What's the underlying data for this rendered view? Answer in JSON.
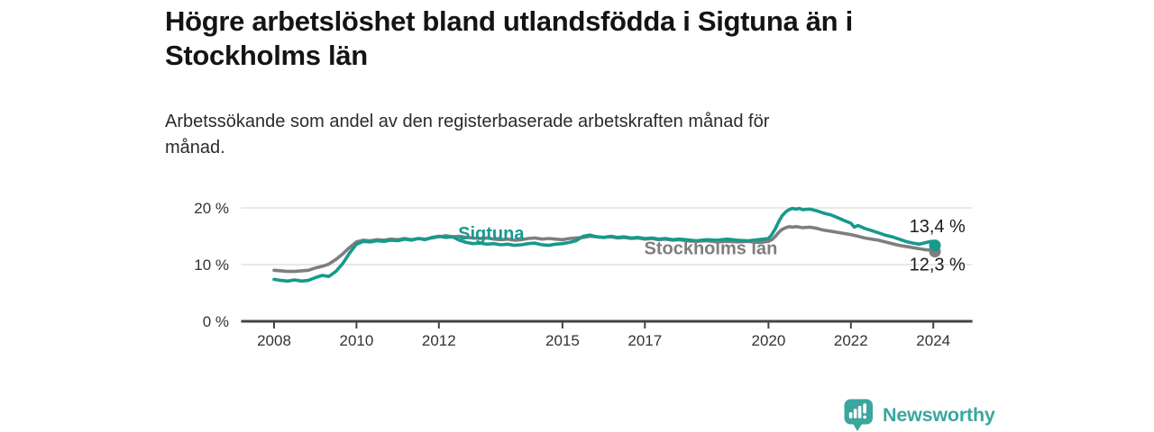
{
  "branding": {
    "logo_text": "Newsworthy",
    "logo_icon": "bar-chart-speech-bubble",
    "logo_color": "#3ba69e"
  },
  "chart_data": {
    "type": "line",
    "title": "Högre arbetslöshet bland utlandsfödda i Sigtuna än i Stockholms län",
    "subtitle": "Arbetssökande som andel av den registerbaserade arbetskraften månad för månad.",
    "xlabel": "",
    "ylabel": "",
    "x_unit": "year",
    "y_unit": "percent",
    "xlim": [
      2007.2,
      2024.95
    ],
    "ylim": [
      0,
      22
    ],
    "x_ticks": [
      2008,
      2010,
      2012,
      2015,
      2017,
      2020,
      2022,
      2024
    ],
    "y_ticks": [
      {
        "value": 20,
        "label": "20 %"
      },
      {
        "value": 10,
        "label": "10 %"
      },
      {
        "value": 0,
        "label": "0 %"
      }
    ],
    "grid_values": [
      20,
      10
    ],
    "grid_color": "#dcdcdc",
    "axis_color": "#454545",
    "tick_label_color": "#333333",
    "legend_position": "inline-labels",
    "series": [
      {
        "id": "stockholms-lan",
        "name": "Stockholms län",
        "color": "#7e7e7e",
        "end_value": 12.3,
        "end_label": "12,3 %",
        "points": [
          [
            2008,
            9.0
          ],
          [
            2008.17,
            8.9
          ],
          [
            2008.33,
            8.8
          ],
          [
            2008.5,
            8.8
          ],
          [
            2008.67,
            8.9
          ],
          [
            2008.83,
            9.0
          ],
          [
            2009,
            9.4
          ],
          [
            2009.17,
            9.7
          ],
          [
            2009.33,
            10.1
          ],
          [
            2009.5,
            10.9
          ],
          [
            2009.67,
            11.9
          ],
          [
            2009.83,
            13.0
          ],
          [
            2010,
            14.0
          ],
          [
            2010.17,
            14.3
          ],
          [
            2010.33,
            14.2
          ],
          [
            2010.5,
            14.4
          ],
          [
            2010.67,
            14.3
          ],
          [
            2010.83,
            14.5
          ],
          [
            2011,
            14.4
          ],
          [
            2011.17,
            14.6
          ],
          [
            2011.33,
            14.4
          ],
          [
            2011.5,
            14.6
          ],
          [
            2011.67,
            14.5
          ],
          [
            2011.83,
            14.7
          ],
          [
            2012,
            14.9
          ],
          [
            2012.17,
            15.1
          ],
          [
            2012.33,
            14.9
          ],
          [
            2012.5,
            15.0
          ],
          [
            2012.67,
            14.8
          ],
          [
            2012.83,
            14.7
          ],
          [
            2013,
            14.6
          ],
          [
            2013.17,
            14.7
          ],
          [
            2013.33,
            14.5
          ],
          [
            2013.5,
            14.4
          ],
          [
            2013.67,
            14.5
          ],
          [
            2013.83,
            14.3
          ],
          [
            2014,
            14.4
          ],
          [
            2014.17,
            14.6
          ],
          [
            2014.33,
            14.7
          ],
          [
            2014.5,
            14.5
          ],
          [
            2014.67,
            14.6
          ],
          [
            2014.83,
            14.5
          ],
          [
            2015,
            14.4
          ],
          [
            2015.17,
            14.6
          ],
          [
            2015.33,
            14.7
          ],
          [
            2015.5,
            14.8
          ],
          [
            2015.67,
            15.0
          ],
          [
            2015.83,
            14.9
          ],
          [
            2016,
            14.8
          ],
          [
            2016.17,
            14.9
          ],
          [
            2016.33,
            14.7
          ],
          [
            2016.5,
            14.8
          ],
          [
            2016.67,
            14.6
          ],
          [
            2016.83,
            14.7
          ],
          [
            2017,
            14.5
          ],
          [
            2017.17,
            14.6
          ],
          [
            2017.33,
            14.4
          ],
          [
            2017.5,
            14.5
          ],
          [
            2017.67,
            14.3
          ],
          [
            2017.83,
            14.4
          ],
          [
            2018,
            14.2
          ],
          [
            2018.25,
            14.1
          ],
          [
            2018.5,
            14.2
          ],
          [
            2018.75,
            14.0
          ],
          [
            2019,
            14.1
          ],
          [
            2019.25,
            14.0
          ],
          [
            2019.5,
            14.1
          ],
          [
            2019.75,
            13.9
          ],
          [
            2020,
            14.1
          ],
          [
            2020.08,
            14.4
          ],
          [
            2020.17,
            15.0
          ],
          [
            2020.25,
            15.7
          ],
          [
            2020.33,
            16.2
          ],
          [
            2020.42,
            16.5
          ],
          [
            2020.5,
            16.7
          ],
          [
            2020.58,
            16.6
          ],
          [
            2020.67,
            16.7
          ],
          [
            2020.75,
            16.6
          ],
          [
            2020.83,
            16.5
          ],
          [
            2021,
            16.6
          ],
          [
            2021.17,
            16.4
          ],
          [
            2021.33,
            16.1
          ],
          [
            2021.5,
            15.9
          ],
          [
            2021.67,
            15.7
          ],
          [
            2021.83,
            15.5
          ],
          [
            2022,
            15.3
          ],
          [
            2022.17,
            15.0
          ],
          [
            2022.33,
            14.7
          ],
          [
            2022.5,
            14.5
          ],
          [
            2022.67,
            14.3
          ],
          [
            2022.83,
            14.0
          ],
          [
            2023,
            13.7
          ],
          [
            2023.17,
            13.4
          ],
          [
            2023.33,
            13.2
          ],
          [
            2023.5,
            13.0
          ],
          [
            2023.67,
            12.8
          ],
          [
            2023.83,
            12.6
          ],
          [
            2023.96,
            12.6
          ],
          [
            2024.04,
            12.3
          ]
        ]
      },
      {
        "id": "sigtuna",
        "name": "Sigtuna",
        "color": "#17998d",
        "end_value": 13.4,
        "end_label": "13,4 %",
        "points": [
          [
            2008,
            7.4
          ],
          [
            2008.17,
            7.2
          ],
          [
            2008.33,
            7.1
          ],
          [
            2008.5,
            7.3
          ],
          [
            2008.67,
            7.1
          ],
          [
            2008.83,
            7.2
          ],
          [
            2009,
            7.7
          ],
          [
            2009.17,
            8.1
          ],
          [
            2009.33,
            7.9
          ],
          [
            2009.5,
            8.8
          ],
          [
            2009.67,
            10.2
          ],
          [
            2009.83,
            12.0
          ],
          [
            2010,
            13.6
          ],
          [
            2010.17,
            14.1
          ],
          [
            2010.33,
            14.0
          ],
          [
            2010.5,
            14.2
          ],
          [
            2010.67,
            14.1
          ],
          [
            2010.83,
            14.3
          ],
          [
            2011,
            14.2
          ],
          [
            2011.17,
            14.5
          ],
          [
            2011.33,
            14.3
          ],
          [
            2011.5,
            14.6
          ],
          [
            2011.67,
            14.4
          ],
          [
            2011.83,
            14.8
          ],
          [
            2012,
            15.0
          ],
          [
            2012.17,
            14.8
          ],
          [
            2012.33,
            14.9
          ],
          [
            2012.5,
            14.3
          ],
          [
            2012.67,
            13.9
          ],
          [
            2012.83,
            13.7
          ],
          [
            2013,
            13.8
          ],
          [
            2013.17,
            13.6
          ],
          [
            2013.33,
            13.7
          ],
          [
            2013.5,
            13.5
          ],
          [
            2013.67,
            13.6
          ],
          [
            2013.83,
            13.4
          ],
          [
            2014,
            13.5
          ],
          [
            2014.17,
            13.7
          ],
          [
            2014.33,
            13.8
          ],
          [
            2014.5,
            13.5
          ],
          [
            2014.67,
            13.4
          ],
          [
            2014.83,
            13.6
          ],
          [
            2015,
            13.7
          ],
          [
            2015.17,
            13.9
          ],
          [
            2015.33,
            14.2
          ],
          [
            2015.5,
            15.0
          ],
          [
            2015.67,
            15.2
          ],
          [
            2015.83,
            14.9
          ],
          [
            2016,
            14.8
          ],
          [
            2016.17,
            15.0
          ],
          [
            2016.33,
            14.8
          ],
          [
            2016.5,
            14.9
          ],
          [
            2016.67,
            14.7
          ],
          [
            2016.83,
            14.8
          ],
          [
            2017,
            14.6
          ],
          [
            2017.17,
            14.7
          ],
          [
            2017.33,
            14.5
          ],
          [
            2017.5,
            14.6
          ],
          [
            2017.67,
            14.4
          ],
          [
            2017.83,
            14.5
          ],
          [
            2018,
            14.4
          ],
          [
            2018.25,
            14.2
          ],
          [
            2018.5,
            14.4
          ],
          [
            2018.75,
            14.3
          ],
          [
            2019,
            14.5
          ],
          [
            2019.25,
            14.3
          ],
          [
            2019.5,
            14.2
          ],
          [
            2019.75,
            14.4
          ],
          [
            2020,
            14.6
          ],
          [
            2020.08,
            15.3
          ],
          [
            2020.17,
            16.4
          ],
          [
            2020.25,
            17.6
          ],
          [
            2020.33,
            18.6
          ],
          [
            2020.42,
            19.3
          ],
          [
            2020.5,
            19.7
          ],
          [
            2020.58,
            19.9
          ],
          [
            2020.67,
            19.8
          ],
          [
            2020.75,
            19.9
          ],
          [
            2020.83,
            19.7
          ],
          [
            2021,
            19.8
          ],
          [
            2021.17,
            19.5
          ],
          [
            2021.33,
            19.1
          ],
          [
            2021.5,
            18.8
          ],
          [
            2021.67,
            18.3
          ],
          [
            2021.83,
            17.8
          ],
          [
            2022,
            17.3
          ],
          [
            2022.08,
            16.6
          ],
          [
            2022.17,
            16.9
          ],
          [
            2022.33,
            16.4
          ],
          [
            2022.5,
            16.0
          ],
          [
            2022.67,
            15.6
          ],
          [
            2022.83,
            15.2
          ],
          [
            2023,
            14.9
          ],
          [
            2023.17,
            14.5
          ],
          [
            2023.33,
            14.1
          ],
          [
            2023.5,
            13.8
          ],
          [
            2023.67,
            13.6
          ],
          [
            2023.83,
            13.9
          ],
          [
            2023.96,
            14.1
          ],
          [
            2024.04,
            13.4
          ]
        ]
      }
    ],
    "annotations": [
      {
        "id": "series-label-sigtuna",
        "text": "Sigtuna",
        "x": 2013.27,
        "y": 14.45,
        "anchor": "middle",
        "bold": true,
        "color": "#17998d",
        "size": 20
      },
      {
        "id": "series-label-stockholms-lan",
        "text": "Stockholms län",
        "x": 2018.6,
        "y": 11.8,
        "anchor": "middle",
        "bold": true,
        "color": "#7e7e7e",
        "size": 20
      },
      {
        "id": "end-value-sigtuna",
        "text": "13,4 %",
        "x": 2024.78,
        "y": 15.7,
        "anchor": "end",
        "bold": false,
        "color": "#1a1a1a",
        "size": 20
      },
      {
        "id": "end-value-stockholms-lan",
        "text": "12,3 %",
        "x": 2024.78,
        "y": 9.0,
        "anchor": "end",
        "bold": false,
        "color": "#1a1a1a",
        "size": 20
      }
    ]
  }
}
